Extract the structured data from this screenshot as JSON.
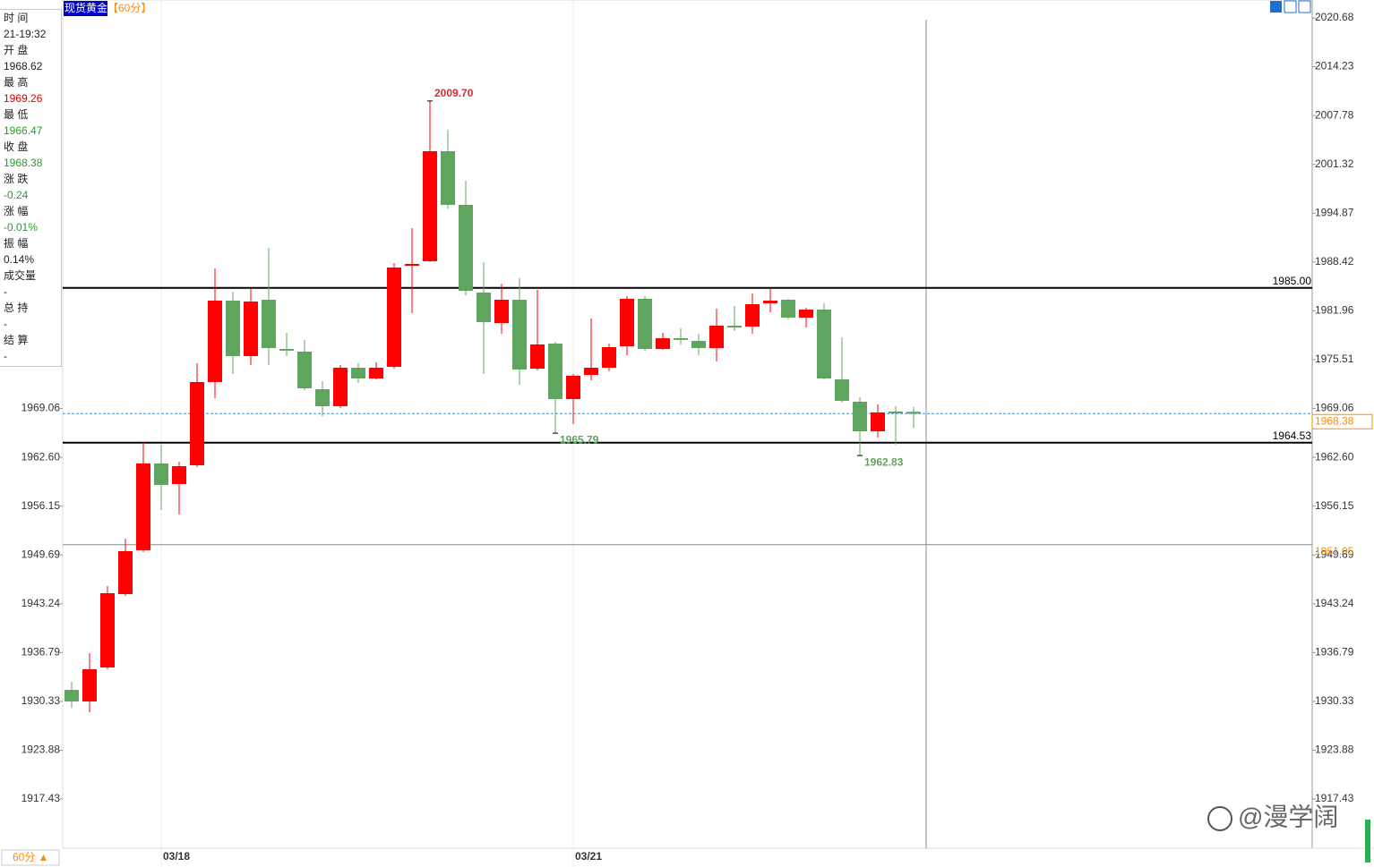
{
  "header": {
    "symbol": "现货黄金",
    "period": "【60分】"
  },
  "period_button": "60分 ▲",
  "watermark": "@漫学阔",
  "info": [
    {
      "label": "时 间",
      "value": "21-19:32"
    },
    {
      "label": "开 盘",
      "value": "1968.62"
    },
    {
      "label": "最 高",
      "value": "1969.26",
      "color": "#e00000"
    },
    {
      "label": "最 低",
      "value": "1966.47",
      "color": "#2e9a2e"
    },
    {
      "label": "收 盘",
      "value": "1968.38",
      "color": "#2e9a2e"
    },
    {
      "label": "涨 跌",
      "value": "-0.24",
      "color": "#2e9a2e"
    },
    {
      "label": "涨 幅",
      "value": "-0.01%",
      "color": "#2e9a2e"
    },
    {
      "label": "振 幅",
      "value": "0.14%"
    },
    {
      "label": "成交量",
      "value": "-"
    },
    {
      "label": "总 持",
      "value": "-"
    },
    {
      "label": "结 算",
      "value": "-"
    }
  ],
  "chart_data": {
    "type": "candlestick",
    "up_color": "#ff0000",
    "down_color": "#5fa55f",
    "categories": [
      null,
      null,
      null,
      null,
      null,
      "03/18",
      null,
      null,
      null,
      null,
      null,
      null,
      null,
      null,
      null,
      null,
      null,
      null,
      null,
      null,
      null,
      null,
      null,
      null,
      null,
      null,
      null,
      null,
      "03/21",
      null,
      null,
      null,
      null,
      null,
      null,
      null,
      null,
      null,
      null,
      null,
      null,
      null,
      null,
      null,
      null,
      null,
      null,
      null
    ],
    "open": [
      1931.86,
      1930.33,
      1934.82,
      1944.52,
      1950.32,
      1961.79,
      1959.07,
      1961.55,
      1972.55,
      1983.31,
      1975.98,
      1983.43,
      1976.92,
      1976.57,
      1971.6,
      1969.36,
      1974.44,
      1973.02,
      1974.56,
      1987.92,
      1988.52,
      2003.06,
      1995.97,
      1984.38,
      1980.35,
      1983.43,
      1974.32,
      1977.63,
      1970.3,
      1973.49,
      1974.44,
      1977.28,
      1983.55,
      1976.92,
      1978.34,
      1977.99,
      1977.04,
      1980.0,
      1979.88,
      1982.96,
      1983.43,
      1981.06,
      1982.13,
      1972.9,
      1969.95,
      1966.04,
      1968.65,
      1968.62
    ],
    "high": [
      1932.93,
      1936.71,
      1945.58,
      1951.85,
      1964.63,
      1964.27,
      1962.02,
      1975.03,
      1987.57,
      1984.49,
      1984.97,
      1990.29,
      1979.05,
      1978.11,
      1972.67,
      1974.8,
      1975.03,
      1975.15,
      1988.28,
      1992.89,
      2009.7,
      2005.9,
      1999.16,
      1988.4,
      1985.56,
      1986.27,
      1984.73,
      1977.87,
      1973.61,
      1980.95,
      1977.63,
      1983.9,
      1983.9,
      1979.05,
      1979.65,
      1978.94,
      1982.25,
      1982.6,
      1984.26,
      1984.85,
      1983.55,
      1982.37,
      1982.96,
      1978.46,
      1970.54,
      1969.59,
      1969.36,
      1969.26
    ],
    "low": [
      1929.5,
      1928.91,
      1934.58,
      1944.28,
      1950.08,
      1955.64,
      1955.04,
      1961.31,
      1970.42,
      1973.61,
      1974.8,
      1974.8,
      1975.98,
      1971.48,
      1968.05,
      1969.12,
      1972.43,
      1972.9,
      1974.32,
      1981.66,
      1988.4,
      1995.49,
      1984.02,
      1973.61,
      1978.94,
      1972.19,
      1974.09,
      1965.79,
      1966.99,
      1972.79,
      1973.97,
      1976.1,
      1976.69,
      1976.8,
      1977.52,
      1976.1,
      1975.27,
      1979.29,
      1978.94,
      1981.77,
      1980.83,
      1979.76,
      1972.9,
      1969.83,
      1962.83,
      1965.22,
      1964.27,
      1966.47
    ],
    "close": [
      1930.33,
      1934.58,
      1944.64,
      1950.2,
      1961.79,
      1958.95,
      1961.43,
      1972.55,
      1983.31,
      1975.98,
      1983.19,
      1977.04,
      1976.69,
      1971.72,
      1969.36,
      1974.44,
      1973.02,
      1974.44,
      1987.69,
      1988.16,
      2003.06,
      1995.97,
      1984.61,
      1980.47,
      1983.43,
      1974.2,
      1977.52,
      1970.3,
      1973.38,
      1974.44,
      1977.16,
      1983.55,
      1976.92,
      1978.34,
      1978.11,
      1977.04,
      1980.0,
      1979.76,
      1982.84,
      1983.31,
      1981.06,
      1982.13,
      1973.02,
      1970.07,
      1966.04,
      1968.53,
      1968.41,
      1968.38
    ],
    "high_labels": [
      null,
      null,
      null,
      null,
      null,
      null,
      null,
      null,
      null,
      null,
      null,
      null,
      null,
      null,
      null,
      null,
      null,
      null,
      null,
      null,
      "2009.70",
      null,
      null,
      null,
      null,
      null,
      null,
      null,
      null,
      null,
      null,
      null,
      null,
      null,
      null,
      null,
      null,
      null,
      null,
      null,
      null,
      null,
      null,
      null,
      null,
      null,
      null,
      null
    ],
    "low_labels": [
      null,
      null,
      null,
      null,
      null,
      null,
      null,
      null,
      null,
      null,
      null,
      null,
      null,
      null,
      null,
      null,
      null,
      null,
      null,
      null,
      null,
      null,
      null,
      null,
      null,
      null,
      null,
      "1965.79",
      null,
      null,
      null,
      null,
      null,
      null,
      null,
      null,
      null,
      null,
      null,
      null,
      null,
      null,
      null,
      null,
      "1962.83",
      null,
      null,
      null
    ],
    "ylim": [
      1910.93,
      2023.05
    ],
    "yticks": [
      2020.68,
      2014.23,
      2007.78,
      2001.32,
      1994.87,
      1988.42,
      1981.96,
      1975.51,
      1969.06,
      {
        "value": 1962.6,
        "label": "1962.60"
      },
      1956.15,
      1949.69,
      1943.24,
      1936.79,
      1930.33,
      1923.88,
      1917.43
    ],
    "levels": [
      {
        "value": 1985,
        "label": "1985.00"
      },
      {
        "value": 1964.53,
        "label": "1964.53"
      }
    ],
    "last_price": {
      "value": 1968.38,
      "label": "1968.38",
      "color": "#ff8c00"
    },
    "crosshair_y": {
      "value": 1951.05,
      "label": "1951.05",
      "color": "#ff8c00"
    },
    "grid": false
  }
}
